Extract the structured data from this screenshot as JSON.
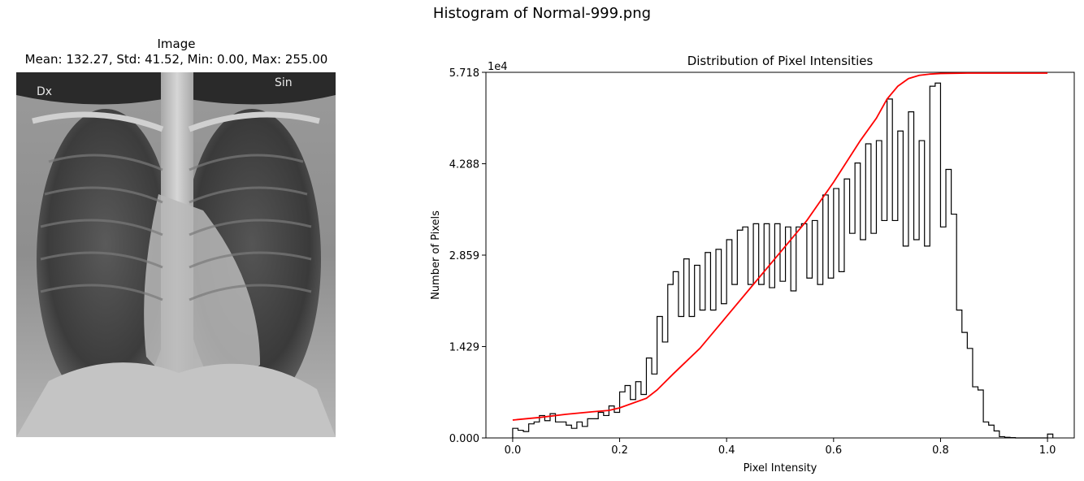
{
  "figure": {
    "suptitle": "Histogram of Normal-999.png"
  },
  "image_panel": {
    "title": "Image",
    "stats_line": "Mean: 132.27, Std: 41.52, Min: 0.00, Max: 255.00",
    "label_left": "Dx",
    "label_right": "Sin"
  },
  "chart_data": {
    "type": "histogram",
    "title": "Distribution of Pixel Intensities",
    "xlabel": "Pixel Intensity",
    "ylabel": "Number of Pixels",
    "xlim": [
      -0.05,
      1.05
    ],
    "ylim": [
      0,
      57180
    ],
    "y_scale_label": "1e4",
    "xticks": [
      0.0,
      0.2,
      0.4,
      0.6,
      0.8,
      1.0
    ],
    "xtick_labels": [
      "0.0",
      "0.2",
      "0.4",
      "0.6",
      "0.8",
      "1.0"
    ],
    "yticks": [
      0,
      14290,
      28590,
      42880,
      57180
    ],
    "ytick_labels": [
      "0.000",
      "1.429",
      "2.859",
      "4.288",
      "5.718"
    ],
    "bin_width": 0.01,
    "bin_start": 0.0,
    "hist_counts": [
      1500,
      1200,
      1000,
      2200,
      2500,
      3500,
      2700,
      3800,
      2500,
      2500,
      2000,
      1500,
      2500,
      1800,
      3000,
      3000,
      4000,
      3500,
      5000,
      4000,
      7200,
      8200,
      6000,
      8800,
      6800,
      12500,
      10000,
      19000,
      15000,
      24000,
      26000,
      19000,
      28000,
      19000,
      27000,
      20000,
      29000,
      20000,
      29500,
      21000,
      31000,
      24000,
      32500,
      33000,
      24000,
      33500,
      24000,
      33500,
      23500,
      33500,
      24500,
      33000,
      23000,
      33000,
      33500,
      25000,
      34000,
      24000,
      38000,
      25000,
      39000,
      26000,
      40500,
      32000,
      43000,
      31000,
      46000,
      32000,
      46500,
      34000,
      53000,
      34000,
      48000,
      30000,
      51000,
      31000,
      46500,
      30000,
      55000,
      55500,
      33000,
      42000,
      35000,
      20000,
      16500,
      14000,
      8000,
      7500,
      2500,
      2000,
      1100,
      200,
      100,
      50,
      0,
      0,
      0,
      0,
      0,
      0,
      600
    ],
    "series": [
      {
        "x": [
          0.0,
          0.05,
          0.1,
          0.15,
          0.18,
          0.2,
          0.25,
          0.27,
          0.3,
          0.35,
          0.4,
          0.45,
          0.5,
          0.55,
          0.6,
          0.65,
          0.68,
          0.7,
          0.72,
          0.74,
          0.76,
          0.78,
          0.8,
          0.85,
          0.9,
          0.95,
          1.0
        ],
        "y": [
          2800,
          3200,
          3700,
          4100,
          4300,
          4700,
          6200,
          7500,
          10000,
          14000,
          19000,
          24000,
          29000,
          34000,
          40000,
          46500,
          50000,
          53000,
          55000,
          56200,
          56700,
          56900,
          57000,
          57050,
          57050,
          57050,
          57050
        ]
      }
    ],
    "hist_color": "#000000",
    "cdf_color": "#ff0000",
    "grid": false
  }
}
